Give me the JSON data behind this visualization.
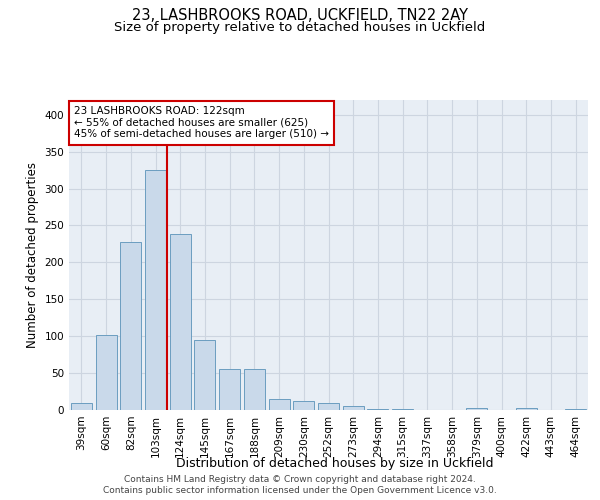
{
  "title_line1": "23, LASHBROOKS ROAD, UCKFIELD, TN22 2AY",
  "title_line2": "Size of property relative to detached houses in Uckfield",
  "xlabel": "Distribution of detached houses by size in Uckfield",
  "ylabel": "Number of detached properties",
  "categories": [
    "39sqm",
    "60sqm",
    "82sqm",
    "103sqm",
    "124sqm",
    "145sqm",
    "167sqm",
    "188sqm",
    "209sqm",
    "230sqm",
    "252sqm",
    "273sqm",
    "294sqm",
    "315sqm",
    "337sqm",
    "358sqm",
    "379sqm",
    "400sqm",
    "422sqm",
    "443sqm",
    "464sqm"
  ],
  "values": [
    10,
    102,
    228,
    325,
    238,
    95,
    55,
    55,
    15,
    12,
    10,
    5,
    2,
    1,
    0,
    0,
    3,
    0,
    3,
    0,
    2
  ],
  "bar_color": "#c9d9ea",
  "bar_edge_color": "#6b9dc0",
  "bar_edge_width": 0.7,
  "vline_x": 3.47,
  "vline_color": "#cc0000",
  "annotation_text": "23 LASHBROOKS ROAD: 122sqm\n← 55% of detached houses are smaller (625)\n45% of semi-detached houses are larger (510) →",
  "annotation_box_color": "#ffffff",
  "annotation_box_edge_color": "#cc0000",
  "ylim": [
    0,
    420
  ],
  "yticks": [
    0,
    50,
    100,
    150,
    200,
    250,
    300,
    350,
    400
  ],
  "grid_color": "#cdd5e0",
  "background_color": "#e8eef5",
  "footer_line1": "Contains HM Land Registry data © Crown copyright and database right 2024.",
  "footer_line2": "Contains public sector information licensed under the Open Government Licence v3.0.",
  "title_fontsize": 10.5,
  "subtitle_fontsize": 9.5,
  "ylabel_fontsize": 8.5,
  "xlabel_fontsize": 9,
  "tick_fontsize": 7.5,
  "footer_fontsize": 6.5,
  "annot_fontsize": 7.5
}
